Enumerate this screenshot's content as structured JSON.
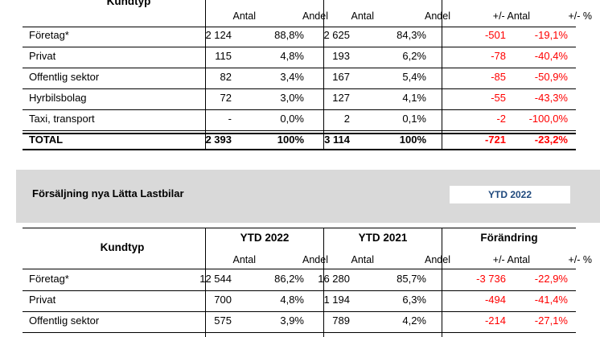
{
  "table1": {
    "kundtyp_label": "Kundtyp",
    "sub": {
      "antal_a": "Antal",
      "andel_a": "Andel",
      "antal_b": "Antal",
      "andel_b": "Andel",
      "diff_antal": "+/- Antal",
      "diff_pct": "+/- %"
    },
    "rows": [
      {
        "name": "Företag*",
        "a1": "2 124",
        "p1": "88,8%",
        "a2": "2 625",
        "p2": "84,3%",
        "da": "-501",
        "dp": "-19,1%"
      },
      {
        "name": "Privat",
        "a1": "115",
        "p1": "4,8%",
        "a2": "193",
        "p2": "6,2%",
        "da": "-78",
        "dp": "-40,4%"
      },
      {
        "name": "Offentlig sektor",
        "a1": "82",
        "p1": "3,4%",
        "a2": "167",
        "p2": "5,4%",
        "da": "-85",
        "dp": "-50,9%"
      },
      {
        "name": "Hyrbilsbolag",
        "a1": "72",
        "p1": "3,0%",
        "a2": "127",
        "p2": "4,1%",
        "da": "-55",
        "dp": "-43,3%"
      },
      {
        "name": "Taxi, transport",
        "a1": "-",
        "p1": "0,0%",
        "a2": "2",
        "p2": "0,1%",
        "da": "-2",
        "dp": "-100,0%"
      }
    ],
    "total": {
      "name": "TOTAL",
      "a1": "2 393",
      "p1": "100%",
      "a2": "3 114",
      "p2": "100%",
      "da": "-721",
      "dp": "-23,2%"
    }
  },
  "section2": {
    "title": "Försäljning nya Lätta Lastbilar",
    "period_badge": "YTD 2022"
  },
  "table2": {
    "kundtyp_label": "Kundtyp",
    "group_a": "YTD 2022",
    "group_b": "YTD 2021",
    "group_c": "Förändring",
    "sub": {
      "antal_a": "Antal",
      "andel_a": "Andel",
      "antal_b": "Antal",
      "andel_b": "Andel",
      "diff_antal": "+/- Antal",
      "diff_pct": "+/- %"
    },
    "rows": [
      {
        "name": "Företag*",
        "a1": "12 544",
        "p1": "86,2%",
        "a2": "16 280",
        "p2": "85,7%",
        "da": "-3 736",
        "dp": "-22,9%"
      },
      {
        "name": "Privat",
        "a1": "700",
        "p1": "4,8%",
        "a2": "1 194",
        "p2": "6,3%",
        "da": "-494",
        "dp": "-41,4%"
      },
      {
        "name": "Offentlig sektor",
        "a1": "575",
        "p1": "3,9%",
        "a2": "789",
        "p2": "4,2%",
        "da": "-214",
        "dp": "-27,1%"
      }
    ]
  }
}
